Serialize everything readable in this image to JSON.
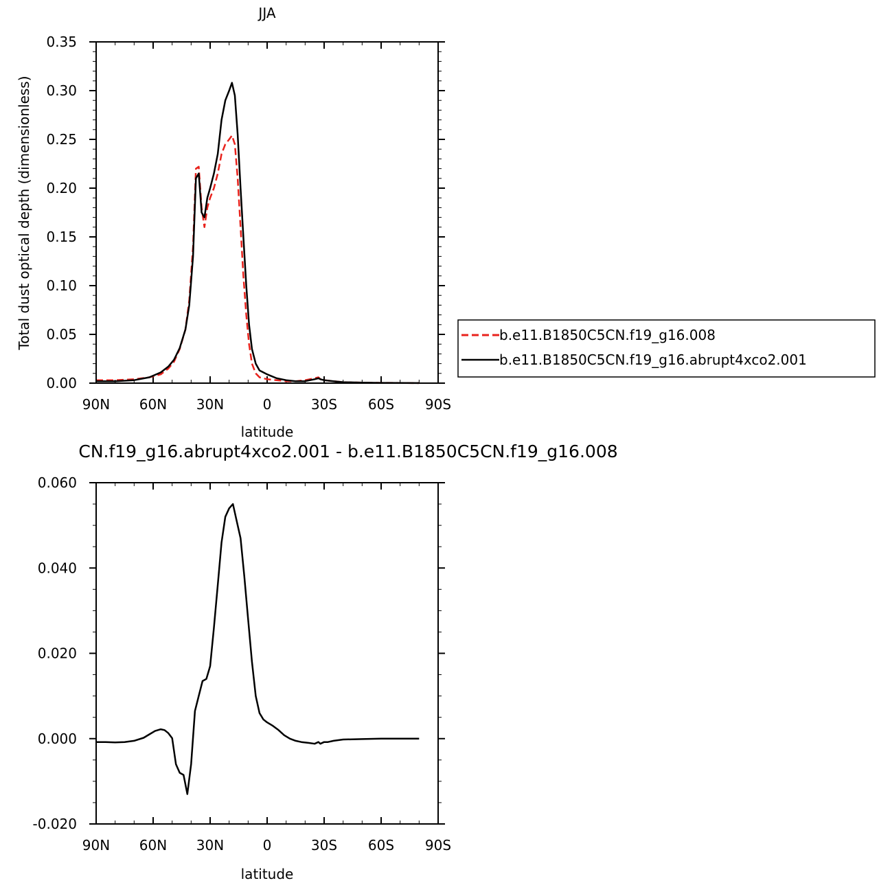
{
  "chart_data": [
    {
      "type": "line",
      "title": "JJA",
      "xlabel": "latitude",
      "ylabel": "Total dust optical depth (dimensionless)",
      "xlim": [
        90,
        -90
      ],
      "ylim": [
        0,
        0.35
      ],
      "x_ticks": [
        90,
        60,
        30,
        0,
        -30,
        -60,
        -90
      ],
      "x_tick_labels": [
        "90N",
        "60N",
        "30N",
        "0",
        "30S",
        "60S",
        "90S"
      ],
      "y_ticks": [
        0,
        0.05,
        0.1,
        0.15,
        0.2,
        0.25,
        0.3,
        0.35
      ],
      "y_tick_labels": [
        "0.00",
        "0.05",
        "0.10",
        "0.15",
        "0.20",
        "0.25",
        "0.30",
        "0.35"
      ],
      "grid": false,
      "legend_position": "right",
      "series": [
        {
          "name": "b.e11.B1850C5CN.f19_g16.008",
          "color": "#e8221c",
          "dash": "dashed",
          "points": [
            [
              90,
              0.003
            ],
            [
              80,
              0.003
            ],
            [
              70,
              0.004
            ],
            [
              62,
              0.006
            ],
            [
              56,
              0.009
            ],
            [
              52,
              0.015
            ],
            [
              49,
              0.022
            ],
            [
              46,
              0.035
            ],
            [
              43,
              0.055
            ],
            [
              41,
              0.085
            ],
            [
              39,
              0.14
            ],
            [
              37.5,
              0.22
            ],
            [
              36,
              0.222
            ],
            [
              34.5,
              0.18
            ],
            [
              33,
              0.16
            ],
            [
              31.5,
              0.18
            ],
            [
              30,
              0.19
            ],
            [
              28,
              0.2
            ],
            [
              26,
              0.215
            ],
            [
              24,
              0.235
            ],
            [
              22,
              0.245
            ],
            [
              20,
              0.25
            ],
            [
              18.5,
              0.254
            ],
            [
              17,
              0.245
            ],
            [
              15.5,
              0.21
            ],
            [
              14,
              0.16
            ],
            [
              12.5,
              0.11
            ],
            [
              11,
              0.07
            ],
            [
              9.5,
              0.04
            ],
            [
              8,
              0.02
            ],
            [
              6,
              0.01
            ],
            [
              4,
              0.006
            ],
            [
              0,
              0.004
            ],
            [
              -5,
              0.003
            ],
            [
              -10,
              0.002
            ],
            [
              -15,
              0.002
            ],
            [
              -20,
              0.003
            ],
            [
              -25,
              0.005
            ],
            [
              -27,
              0.006
            ],
            [
              -28,
              0.004
            ],
            [
              -30,
              0.003
            ],
            [
              -35,
              0.002
            ],
            [
              -40,
              0.001
            ],
            [
              -50,
              0.0005
            ],
            [
              -60,
              0.0003
            ],
            [
              -70,
              0.0002
            ],
            [
              -80,
              0.0001
            ]
          ]
        },
        {
          "name": "b.e11.B1850C5CN.f19_g16.abrupt4xco2.001",
          "color": "#000000",
          "dash": "solid",
          "points": [
            [
              90,
              0.002
            ],
            [
              80,
              0.002
            ],
            [
              70,
              0.003
            ],
            [
              62,
              0.006
            ],
            [
              56,
              0.011
            ],
            [
              52,
              0.017
            ],
            [
              49,
              0.024
            ],
            [
              46,
              0.036
            ],
            [
              43,
              0.055
            ],
            [
              41,
              0.08
            ],
            [
              39,
              0.13
            ],
            [
              37.5,
              0.21
            ],
            [
              36,
              0.215
            ],
            [
              34.5,
              0.175
            ],
            [
              33,
              0.17
            ],
            [
              31.5,
              0.19
            ],
            [
              30,
              0.2
            ],
            [
              28,
              0.215
            ],
            [
              26,
              0.235
            ],
            [
              24,
              0.27
            ],
            [
              22,
              0.29
            ],
            [
              20,
              0.3
            ],
            [
              18.5,
              0.308
            ],
            [
              17,
              0.295
            ],
            [
              15.5,
              0.255
            ],
            [
              14,
              0.2
            ],
            [
              12.5,
              0.15
            ],
            [
              11,
              0.1
            ],
            [
              9.5,
              0.06
            ],
            [
              8,
              0.035
            ],
            [
              6,
              0.02
            ],
            [
              4,
              0.013
            ],
            [
              0,
              0.009
            ],
            [
              -5,
              0.005
            ],
            [
              -10,
              0.003
            ],
            [
              -15,
              0.002
            ],
            [
              -20,
              0.002
            ],
            [
              -25,
              0.004
            ],
            [
              -27,
              0.005
            ],
            [
              -28,
              0.004
            ],
            [
              -30,
              0.003
            ],
            [
              -35,
              0.002
            ],
            [
              -40,
              0.001
            ],
            [
              -50,
              0.0005
            ],
            [
              -60,
              0.0003
            ],
            [
              -70,
              0.0002
            ],
            [
              -80,
              0.0001
            ]
          ]
        }
      ]
    },
    {
      "type": "line",
      "title": "CN.f19_g16.abrupt4xco2.001 - b.e11.B1850C5CN.f19_g16.008",
      "xlabel": "latitude",
      "ylabel": "",
      "xlim": [
        90,
        -90
      ],
      "ylim": [
        -0.02,
        0.06
      ],
      "x_ticks": [
        90,
        60,
        30,
        0,
        -30,
        -60,
        -90
      ],
      "x_tick_labels": [
        "90N",
        "60N",
        "30N",
        "0",
        "30S",
        "60S",
        "90S"
      ],
      "y_ticks": [
        -0.02,
        0,
        0.02,
        0.04,
        0.06
      ],
      "y_tick_labels": [
        "-0.020",
        "0.000",
        "0.020",
        "0.040",
        "0.060"
      ],
      "grid": false,
      "series": [
        {
          "color": "#000000",
          "dash": "solid",
          "points": [
            [
              90,
              -0.0008
            ],
            [
              85,
              -0.0008
            ],
            [
              80,
              -0.0009
            ],
            [
              75,
              -0.0008
            ],
            [
              70,
              -0.0005
            ],
            [
              65,
              0.0002
            ],
            [
              62,
              0.001
            ],
            [
              59,
              0.0018
            ],
            [
              56,
              0.0022
            ],
            [
              54,
              0.002
            ],
            [
              52,
              0.0013
            ],
            [
              50,
              0.0001
            ],
            [
              48,
              -0.006
            ],
            [
              46,
              -0.008
            ],
            [
              44,
              -0.0085
            ],
            [
              42,
              -0.013
            ],
            [
              40,
              -0.006
            ],
            [
              38,
              0.0065
            ],
            [
              36,
              0.01
            ],
            [
              34,
              0.0135
            ],
            [
              32,
              0.014
            ],
            [
              30,
              0.017
            ],
            [
              28,
              0.026
            ],
            [
              26,
              0.036
            ],
            [
              24,
              0.046
            ],
            [
              22,
              0.052
            ],
            [
              20,
              0.054
            ],
            [
              18,
              0.055
            ],
            [
              16,
              0.051
            ],
            [
              14,
              0.047
            ],
            [
              12,
              0.038
            ],
            [
              10,
              0.028
            ],
            [
              8,
              0.018
            ],
            [
              6,
              0.01
            ],
            [
              4,
              0.006
            ],
            [
              2,
              0.0045
            ],
            [
              0,
              0.0038
            ],
            [
              -3,
              0.003
            ],
            [
              -6,
              0.002
            ],
            [
              -9,
              0.0008
            ],
            [
              -12,
              0
            ],
            [
              -15,
              -0.0005
            ],
            [
              -18,
              -0.0008
            ],
            [
              -22,
              -0.001
            ],
            [
              -25,
              -0.0012
            ],
            [
              -27,
              -0.0008
            ],
            [
              -28,
              -0.0012
            ],
            [
              -30,
              -0.0008
            ],
            [
              -32,
              -0.0008
            ],
            [
              -35,
              -0.0005
            ],
            [
              -40,
              -0.0002
            ],
            [
              -50,
              -0.0001
            ],
            [
              -60,
              0
            ],
            [
              -70,
              0
            ],
            [
              -80,
              0
            ]
          ]
        }
      ]
    }
  ]
}
